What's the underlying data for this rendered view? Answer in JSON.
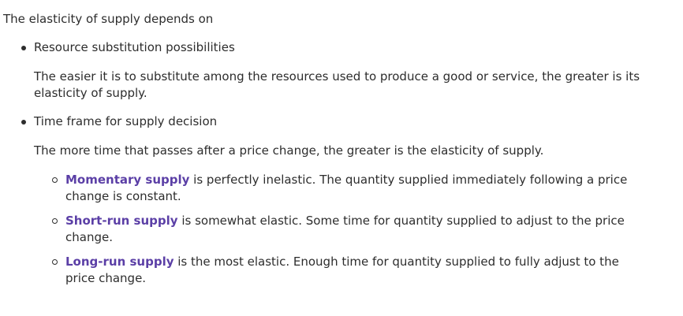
{
  "intro": "The elasticity of supply depends on",
  "bullets": [
    {
      "title": "Resource substitution possibilities",
      "description": "The easier it is to substitute among the resources used to produce a good or service, the greater is its elasticity of supply."
    },
    {
      "title": "Time frame for supply decision",
      "description": "The more time that passes after a price change, the greater is the elasticity of supply.",
      "subitems": [
        {
          "term": "Momentary supply",
          "text": " is perfectly inelastic. The quantity supplied immediately following a price change is constant."
        },
        {
          "term": "Short-run supply",
          "text": " is somewhat elastic.  Some time for quantity supplied to adjust to the price change."
        },
        {
          "term": "Long-run supply",
          "text": " is the most elastic.  Enough time for quantity supplied to fully adjust to the price change."
        }
      ]
    }
  ],
  "colors": {
    "text": "#2d2d2d",
    "term_highlight": "#5b3fa6"
  }
}
